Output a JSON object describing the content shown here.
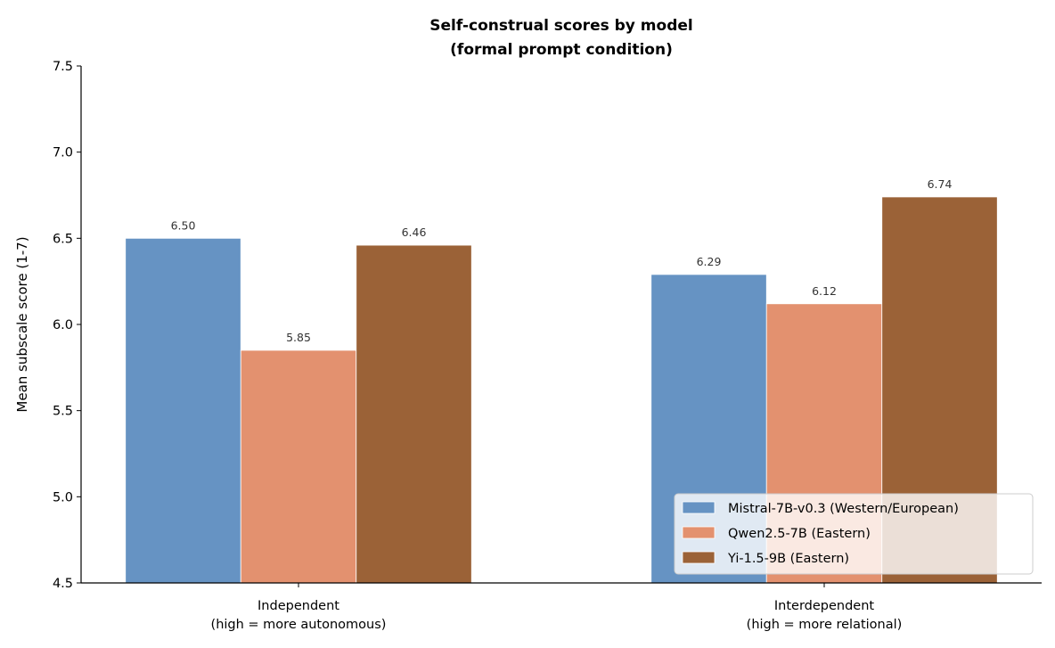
{
  "chart_data": {
    "type": "bar",
    "title": [
      "Self-construal scores by model",
      "(formal prompt condition)"
    ],
    "xlabel": "",
    "ylabel": "Mean subscale score (1-7)",
    "ylim": [
      4.5,
      7.5
    ],
    "yticks": [
      "4.5",
      "5.0",
      "5.5",
      "6.0",
      "6.5",
      "7.0",
      "7.5"
    ],
    "categories": [
      [
        "Independent",
        "(high = more autonomous)"
      ],
      [
        "Interdependent",
        "(high = more relational)"
      ]
    ],
    "series": [
      {
        "name": "Mistral-7B-v0.3 (Western/European)",
        "color": "#6693c3",
        "values": [
          6.5,
          6.29
        ],
        "labels": [
          "6.50",
          "6.29"
        ]
      },
      {
        "name": "Qwen2.5-7B (Eastern)",
        "color": "#e3916f",
        "values": [
          5.85,
          6.12
        ],
        "labels": [
          "5.85",
          "6.12"
        ]
      },
      {
        "name": "Yi-1.5-9B (Eastern)",
        "color": "#9b6237",
        "values": [
          6.46,
          6.74
        ],
        "labels": [
          "6.46",
          "6.74"
        ]
      }
    ],
    "grid": false,
    "legend_position": "lower-right"
  }
}
